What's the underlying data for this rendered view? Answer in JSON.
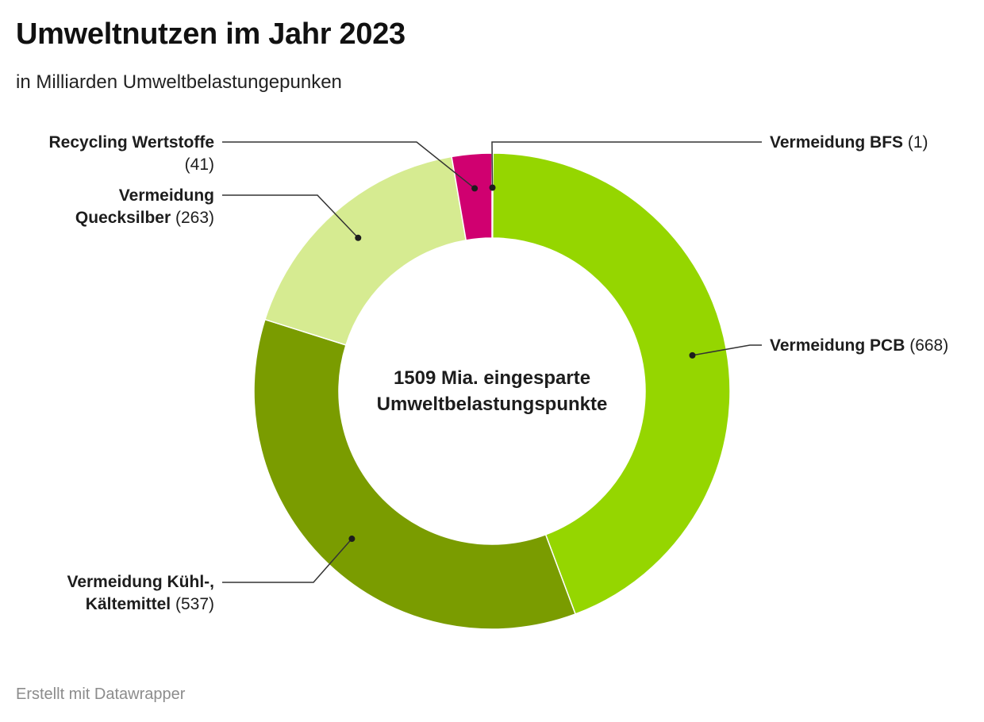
{
  "footer": "Erstellt mit Datawrapper",
  "chart_data": {
    "type": "pie",
    "variant": "donut",
    "title": "Umweltnutzen im Jahr 2023",
    "subtitle": "in Milliarden Umweltbelastungepunken",
    "center_label": [
      "1509 Mia. eingesparte",
      "Umweltbelastungspunkte"
    ],
    "total": 1509,
    "slices": [
      {
        "name": "Vermeidung BFS",
        "value": 1,
        "value_label": "(1)",
        "color": "#95d600",
        "label_lines": [
          "Vermeidung BFS"
        ]
      },
      {
        "name": "Vermeidung PCB",
        "value": 668,
        "value_label": "(668)",
        "color": "#95d600",
        "label_lines": [
          "Vermeidung PCB"
        ]
      },
      {
        "name": "Vermeidung Kühl-, Kältemittel",
        "value": 537,
        "value_label": "(537)",
        "color": "#7a9c00",
        "label_lines": [
          "Vermeidung Kühl-,",
          "Kältemittel"
        ]
      },
      {
        "name": "Vermeidung Quecksilber",
        "value": 263,
        "value_label": "(263)",
        "color": "#d6eb91",
        "label_lines": [
          "Vermeidung",
          "Quecksilber"
        ]
      },
      {
        "name": "Recycling Wertstoffe",
        "value": 41,
        "value_label": "(41)",
        "color": "#d00070",
        "label_lines": [
          "Recycling Wertstoffe"
        ]
      }
    ]
  }
}
